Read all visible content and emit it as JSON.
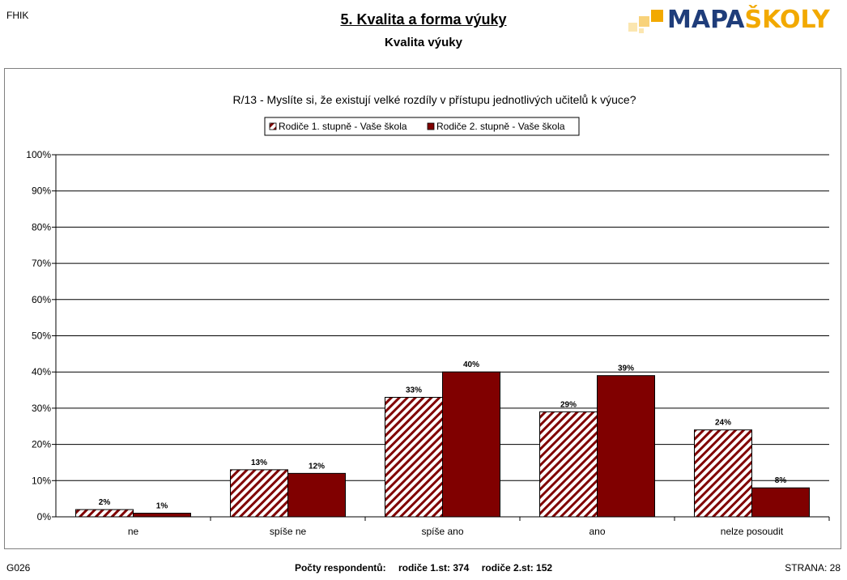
{
  "header": {
    "corner_code": "FHIK",
    "title": "5. Kvalita a forma výuky",
    "subtitle": "Kvalita výuky",
    "logo_text_part1": "MAPA",
    "logo_text_part2": "ŠKOLY",
    "logo_colors": {
      "primary": "#1f3d7a",
      "accent": "#f2a900"
    }
  },
  "footer": {
    "left": "G026",
    "respondents_label": "Počty respondentů:",
    "respondents_1": "rodiče 1.st: 374",
    "respondents_2": "rodiče 2.st: 152",
    "right": "STRANA: 28"
  },
  "chart_data": {
    "type": "bar",
    "title": "R/13 - Myslíte si, že existují velké rozdíly v přístupu jednotlivých učitelů k výuce?",
    "categories": [
      "ne",
      "spíše ne",
      "spíše ano",
      "ano",
      "nelze posoudit"
    ],
    "series": [
      {
        "name": "Rodiče 1. stupně - Vaše škola",
        "values": [
          2,
          13,
          33,
          29,
          24
        ],
        "color": "#800000",
        "pattern": "diagonal-hatch"
      },
      {
        "name": "Rodiče 2. stupně - Vaše škola",
        "values": [
          1,
          12,
          40,
          39,
          8
        ],
        "color": "#800000",
        "pattern": "solid"
      }
    ],
    "data_labels": [
      [
        "2%",
        "13%",
        "33%",
        "29%",
        "24%"
      ],
      [
        "1%",
        "12%",
        "40%",
        "39%",
        "8%"
      ]
    ],
    "y_ticks": [
      "0%",
      "10%",
      "20%",
      "30%",
      "40%",
      "50%",
      "60%",
      "70%",
      "80%",
      "90%",
      "100%"
    ],
    "ylim": [
      0,
      100
    ],
    "grid": true,
    "legend_position": "top-center",
    "xlabel": "",
    "ylabel": ""
  }
}
